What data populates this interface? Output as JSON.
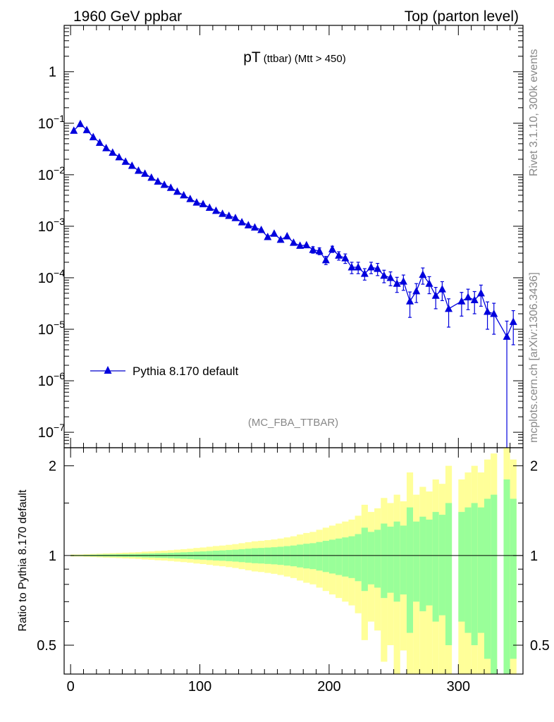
{
  "header": {
    "left": "1960 GeV ppbar",
    "right": "Top (parton level)"
  },
  "title": {
    "main": "pT",
    "sub": "(ttbar)",
    "cut": "(Mtt > 450)"
  },
  "side": {
    "rivet": "Rivet 3.1.10,  300k events",
    "mcplots": "mcplots.cern.ch [arXiv:1306.3436]"
  },
  "watermark": "(MC_FBA_TTBAR)",
  "legend": {
    "label": "Pythia 8.170 default"
  },
  "ratio": {
    "ylabel": "Ratio to Pythia 8.170 default"
  },
  "colors": {
    "series": "#0000dd",
    "band_inner": "#99ff99",
    "band_outer": "#ffff99"
  },
  "chart_data": [
    {
      "type": "line",
      "title": "pT (ttbar) (Mtt > 450)",
      "xlim": [
        -5,
        350
      ],
      "ylim_log10": [
        -7.3,
        0.9
      ],
      "yscale": "log",
      "ytick_labels": [
        "1",
        "10^-1",
        "10^-2",
        "10^-3",
        "10^-4",
        "10^-5",
        "10^-6",
        "10^-7"
      ],
      "xtick_labels": [
        "0",
        "100",
        "200",
        "300"
      ],
      "series": [
        {
          "name": "Pythia 8.170 default",
          "x": [
            2.5,
            7.5,
            12.5,
            17.5,
            22.5,
            27.5,
            32.5,
            37.5,
            42.5,
            47.5,
            52.5,
            57.5,
            62.5,
            67.5,
            72.5,
            77.5,
            82.5,
            87.5,
            92.5,
            97.5,
            102.5,
            107.5,
            112.5,
            117.5,
            122.5,
            127.5,
            132.5,
            137.5,
            142.5,
            147.5,
            152.5,
            157.5,
            162.5,
            167.5,
            172.5,
            177.5,
            182.5,
            187.5,
            192.5,
            197.5,
            202.5,
            207.5,
            212.5,
            217.5,
            222.5,
            227.5,
            232.5,
            237.5,
            242.5,
            247.5,
            252.5,
            257.5,
            262.5,
            267.5,
            272.5,
            277.5,
            282.5,
            287.5,
            292.5,
            302.5,
            307.5,
            312.5,
            317.5,
            322.5,
            327.5,
            337.5,
            342.5
          ],
          "y": [
            0.072,
            0.097,
            0.074,
            0.054,
            0.042,
            0.033,
            0.027,
            0.022,
            0.018,
            0.015,
            0.012,
            0.0105,
            0.0088,
            0.0074,
            0.0064,
            0.0056,
            0.0047,
            0.004,
            0.0034,
            0.0029,
            0.0027,
            0.0023,
            0.002,
            0.00175,
            0.0016,
            0.00145,
            0.0012,
            0.00105,
            0.00095,
            0.00085,
            0.00062,
            0.00072,
            0.00055,
            0.00064,
            0.00048,
            0.00042,
            0.00043,
            0.00035,
            0.00033,
            0.00022,
            0.00036,
            0.00027,
            0.00024,
            0.00016,
            0.00016,
            0.00012,
            0.00016,
            0.00015,
            0.00011,
            0.0001,
            7.7e-05,
            8.5e-05,
            3.5e-05,
            5.5e-05,
            0.000115,
            7.7e-05,
            4.5e-05,
            6e-05,
            2.5e-05,
            3.5e-05,
            4.2e-05,
            3.7e-05,
            5e-05,
            2.2e-05,
            2e-05,
            7.2e-06,
            1.4e-05
          ],
          "yerr": [
            0.002,
            0.003,
            0.002,
            0.002,
            0.0015,
            0.001,
            0.001,
            0.0008,
            0.0006,
            0.0005,
            0.0004,
            0.0004,
            0.0003,
            0.0003,
            0.0003,
            0.00025,
            0.0002,
            0.0002,
            0.00018,
            0.00016,
            0.00015,
            0.00013,
            0.00012,
            0.00011,
            0.0001,
            0.0001,
            9e-05,
            8e-05,
            8e-05,
            7e-05,
            6e-05,
            6e-05,
            5e-05,
            6e-05,
            5e-05,
            5e-05,
            5e-05,
            5e-05,
            5e-05,
            4e-05,
            5e-05,
            5e-05,
            5e-05,
            4e-05,
            4e-05,
            3e-05,
            4e-05,
            4e-05,
            3e-05,
            3e-05,
            2.5e-05,
            2.8e-05,
            1.8e-05,
            2.2e-05,
            4e-05,
            2.8e-05,
            2e-05,
            2.4e-05,
            1.4e-05,
            1.7e-05,
            1.8e-05,
            1.7e-05,
            2.2e-05,
            1.2e-05,
            1.2e-05,
            7.2e-06,
            9e-06
          ]
        }
      ]
    },
    {
      "type": "area",
      "ylabel": "Ratio to Pythia 8.170 default",
      "yscale": "log",
      "xlim": [
        -5,
        350
      ],
      "ylim": [
        0.4,
        2.3
      ],
      "ytick_labels": [
        "0.5",
        "1",
        "2"
      ],
      "xtick_labels": [
        "0",
        "100",
        "200",
        "300"
      ],
      "bin_width": 5,
      "bins": [
        2.5,
        7.5,
        12.5,
        17.5,
        22.5,
        27.5,
        32.5,
        37.5,
        42.5,
        47.5,
        52.5,
        57.5,
        62.5,
        67.5,
        72.5,
        77.5,
        82.5,
        87.5,
        92.5,
        97.5,
        102.5,
        107.5,
        112.5,
        117.5,
        122.5,
        127.5,
        132.5,
        137.5,
        142.5,
        147.5,
        152.5,
        157.5,
        162.5,
        167.5,
        172.5,
        177.5,
        182.5,
        187.5,
        192.5,
        197.5,
        202.5,
        207.5,
        212.5,
        217.5,
        222.5,
        227.5,
        232.5,
        237.5,
        242.5,
        247.5,
        252.5,
        257.5,
        262.5,
        267.5,
        272.5,
        277.5,
        282.5,
        287.5,
        292.5,
        302.5,
        307.5,
        312.5,
        317.5,
        322.5,
        327.5,
        337.5,
        342.5
      ],
      "series": [
        {
          "name": "",
          "inner_rel_err": [
            0.004,
            0.004,
            0.005,
            0.006,
            0.007,
            0.008,
            0.009,
            0.01,
            0.011,
            0.012,
            0.013,
            0.015,
            0.016,
            0.018,
            0.019,
            0.021,
            0.023,
            0.025,
            0.027,
            0.03,
            0.032,
            0.035,
            0.038,
            0.04,
            0.043,
            0.046,
            0.05,
            0.054,
            0.058,
            0.06,
            0.063,
            0.066,
            0.07,
            0.075,
            0.08,
            0.088,
            0.095,
            0.1,
            0.11,
            0.12,
            0.13,
            0.14,
            0.15,
            0.16,
            0.18,
            0.24,
            0.2,
            0.22,
            0.28,
            0.25,
            0.3,
            0.26,
            0.45,
            0.3,
            0.35,
            0.32,
            0.4,
            0.37,
            0.5,
            0.4,
            0.45,
            0.5,
            0.45,
            0.55,
            0.6,
            0.8,
            0.55
          ],
          "outer_rel_err": [
            0.008,
            0.008,
            0.01,
            0.012,
            0.014,
            0.016,
            0.018,
            0.02,
            0.022,
            0.024,
            0.026,
            0.03,
            0.032,
            0.036,
            0.038,
            0.042,
            0.046,
            0.05,
            0.054,
            0.06,
            0.064,
            0.07,
            0.076,
            0.08,
            0.086,
            0.092,
            0.1,
            0.108,
            0.116,
            0.12,
            0.126,
            0.132,
            0.14,
            0.15,
            0.16,
            0.176,
            0.19,
            0.2,
            0.22,
            0.24,
            0.26,
            0.28,
            0.3,
            0.32,
            0.36,
            0.48,
            0.4,
            0.44,
            0.56,
            0.5,
            0.6,
            0.52,
            0.9,
            0.6,
            0.7,
            0.64,
            0.8,
            0.74,
            1.0,
            0.8,
            0.9,
            1.0,
            0.9,
            1.1,
            1.2,
            1.6,
            1.1
          ]
        }
      ]
    }
  ]
}
